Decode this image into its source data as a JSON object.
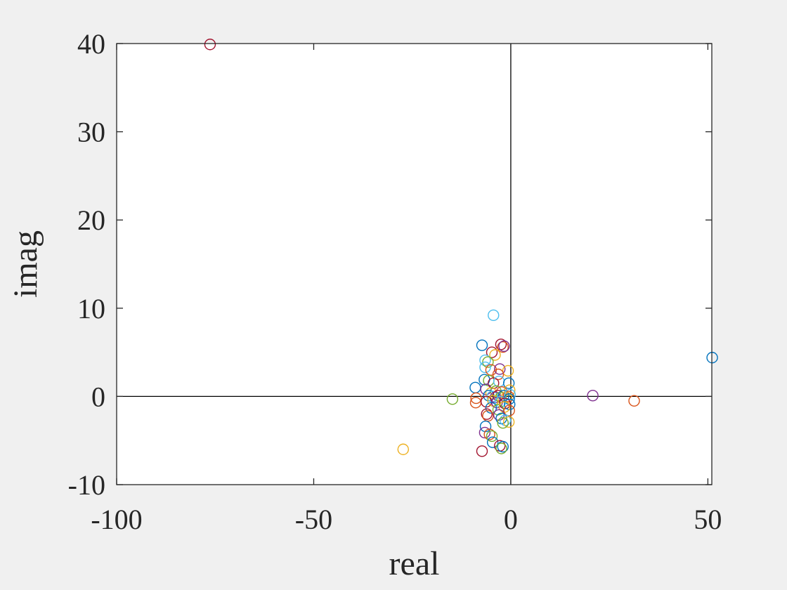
{
  "chart_data": {
    "type": "scatter",
    "title": "",
    "xlabel": "real",
    "ylabel": "imag",
    "xlim": [
      -100,
      51
    ],
    "ylim": [
      -10,
      40
    ],
    "grid": false,
    "legend": "none",
    "marker": "open-circle",
    "x_ticks": [
      {
        "value": -100,
        "label": "-100"
      },
      {
        "value": -50,
        "label": "-50"
      },
      {
        "value": 0,
        "label": "0"
      },
      {
        "value": 50,
        "label": "50"
      }
    ],
    "y_ticks": [
      {
        "value": -10,
        "label": "-10"
      },
      {
        "value": 0,
        "label": "0"
      },
      {
        "value": 10,
        "label": "10"
      },
      {
        "value": 20,
        "label": "20"
      },
      {
        "value": 30,
        "label": "30"
      },
      {
        "value": 40,
        "label": "40"
      }
    ],
    "reference_lines": {
      "x": 0,
      "y": 0
    },
    "palette": [
      "#0072BD",
      "#D95319",
      "#EDB120",
      "#7E2F8E",
      "#77AC30",
      "#4DBEEE",
      "#A2142F"
    ],
    "points": [
      {
        "x": -76.3,
        "y": 39.9,
        "color": "#A2142F"
      },
      {
        "x": 51.1,
        "y": 4.4,
        "color": "#0072BD"
      },
      {
        "x": 20.8,
        "y": 0.1,
        "color": "#7E2F8E"
      },
      {
        "x": 31.3,
        "y": -0.5,
        "color": "#D95319"
      },
      {
        "x": -27.3,
        "y": -6.0,
        "color": "#EDB120"
      },
      {
        "x": -14.8,
        "y": -0.3,
        "color": "#77AC30"
      },
      {
        "x": -4.4,
        "y": 9.2,
        "color": "#4DBEEE"
      },
      {
        "x": -7.3,
        "y": 5.8,
        "color": "#0072BD"
      },
      {
        "x": -2.5,
        "y": 5.9,
        "color": "#A2142F"
      },
      {
        "x": -2.0,
        "y": 5.6,
        "color": "#D95319"
      },
      {
        "x": -1.7,
        "y": 5.7,
        "color": "#7E2F8E"
      },
      {
        "x": -4.8,
        "y": 5.0,
        "color": "#A2142F"
      },
      {
        "x": -4.0,
        "y": 4.7,
        "color": "#EDB120"
      },
      {
        "x": -6.5,
        "y": 4.1,
        "color": "#4DBEEE"
      },
      {
        "x": -5.8,
        "y": 3.9,
        "color": "#77AC30"
      },
      {
        "x": -6.5,
        "y": 3.3,
        "color": "#4DBEEE"
      },
      {
        "x": -5.0,
        "y": 3.0,
        "color": "#D95319"
      },
      {
        "x": -2.8,
        "y": 3.1,
        "color": "#7E2F8E"
      },
      {
        "x": -0.7,
        "y": 2.9,
        "color": "#EDB120"
      },
      {
        "x": -3.2,
        "y": 2.5,
        "color": "#D95319"
      },
      {
        "x": -6.7,
        "y": 1.9,
        "color": "#0072BD"
      },
      {
        "x": -5.6,
        "y": 1.8,
        "color": "#77AC30"
      },
      {
        "x": -4.4,
        "y": 1.5,
        "color": "#A2142F"
      },
      {
        "x": -3.0,
        "y": 1.7,
        "color": "#4DBEEE"
      },
      {
        "x": -0.5,
        "y": 1.5,
        "color": "#0072BD"
      },
      {
        "x": -9.0,
        "y": 1.0,
        "color": "#0072BD"
      },
      {
        "x": -6.3,
        "y": 0.8,
        "color": "#7E2F8E"
      },
      {
        "x": -5.0,
        "y": 0.4,
        "color": "#EDB120"
      },
      {
        "x": -3.8,
        "y": 0.6,
        "color": "#77AC30"
      },
      {
        "x": -2.3,
        "y": 0.5,
        "color": "#D95319"
      },
      {
        "x": -0.3,
        "y": 0.7,
        "color": "#EDB120"
      },
      {
        "x": -5.6,
        "y": 0.1,
        "color": "#0072BD"
      },
      {
        "x": -4.7,
        "y": 0.0,
        "color": "#4DBEEE"
      },
      {
        "x": -3.9,
        "y": -0.1,
        "color": "#7E2F8E"
      },
      {
        "x": -3.2,
        "y": 0.1,
        "color": "#A2142F"
      },
      {
        "x": -2.5,
        "y": -0.1,
        "color": "#77AC30"
      },
      {
        "x": -1.8,
        "y": 0.1,
        "color": "#0072BD"
      },
      {
        "x": -1.1,
        "y": -0.1,
        "color": "#EDB120"
      },
      {
        "x": -0.6,
        "y": 0.0,
        "color": "#D95319"
      },
      {
        "x": -0.2,
        "y": 0.2,
        "color": "#4DBEEE"
      },
      {
        "x": -0.4,
        "y": -0.3,
        "color": "#0072BD"
      },
      {
        "x": -8.8,
        "y": -0.2,
        "color": "#D95319"
      },
      {
        "x": -8.9,
        "y": -0.7,
        "color": "#D95319"
      },
      {
        "x": -6.2,
        "y": -0.6,
        "color": "#A2142F"
      },
      {
        "x": -4.5,
        "y": -0.5,
        "color": "#EDB120"
      },
      {
        "x": -3.5,
        "y": -0.7,
        "color": "#7E2F8E"
      },
      {
        "x": -2.6,
        "y": -0.6,
        "color": "#4DBEEE"
      },
      {
        "x": -1.5,
        "y": -0.8,
        "color": "#A2142F"
      },
      {
        "x": -0.3,
        "y": -0.9,
        "color": "#0072BD"
      },
      {
        "x": -5.0,
        "y": -1.3,
        "color": "#0072BD"
      },
      {
        "x": -3.2,
        "y": -1.5,
        "color": "#77AC30"
      },
      {
        "x": -1.6,
        "y": -1.2,
        "color": "#EDB120"
      },
      {
        "x": -0.4,
        "y": -1.6,
        "color": "#D95319"
      },
      {
        "x": -6.1,
        "y": -2.0,
        "color": "#A2142F"
      },
      {
        "x": -5.8,
        "y": -2.2,
        "color": "#D95319"
      },
      {
        "x": -3.0,
        "y": -2.1,
        "color": "#7E2F8E"
      },
      {
        "x": -2.4,
        "y": -2.5,
        "color": "#0072BD"
      },
      {
        "x": -1.4,
        "y": -2.7,
        "color": "#4DBEEE"
      },
      {
        "x": -0.5,
        "y": -2.9,
        "color": "#EDB120"
      },
      {
        "x": -2.0,
        "y": -3.0,
        "color": "#77AC30"
      },
      {
        "x": -6.4,
        "y": -3.4,
        "color": "#0072BD"
      },
      {
        "x": -6.6,
        "y": -4.1,
        "color": "#7E2F8E"
      },
      {
        "x": -5.4,
        "y": -4.3,
        "color": "#D95319"
      },
      {
        "x": -4.8,
        "y": -4.5,
        "color": "#77AC30"
      },
      {
        "x": -4.6,
        "y": -5.2,
        "color": "#0072BD"
      },
      {
        "x": -2.8,
        "y": -5.6,
        "color": "#A2142F"
      },
      {
        "x": -2.0,
        "y": -5.7,
        "color": "#0072BD"
      },
      {
        "x": -2.4,
        "y": -5.9,
        "color": "#77AC30"
      },
      {
        "x": -7.3,
        "y": -6.2,
        "color": "#A2142F"
      }
    ]
  }
}
